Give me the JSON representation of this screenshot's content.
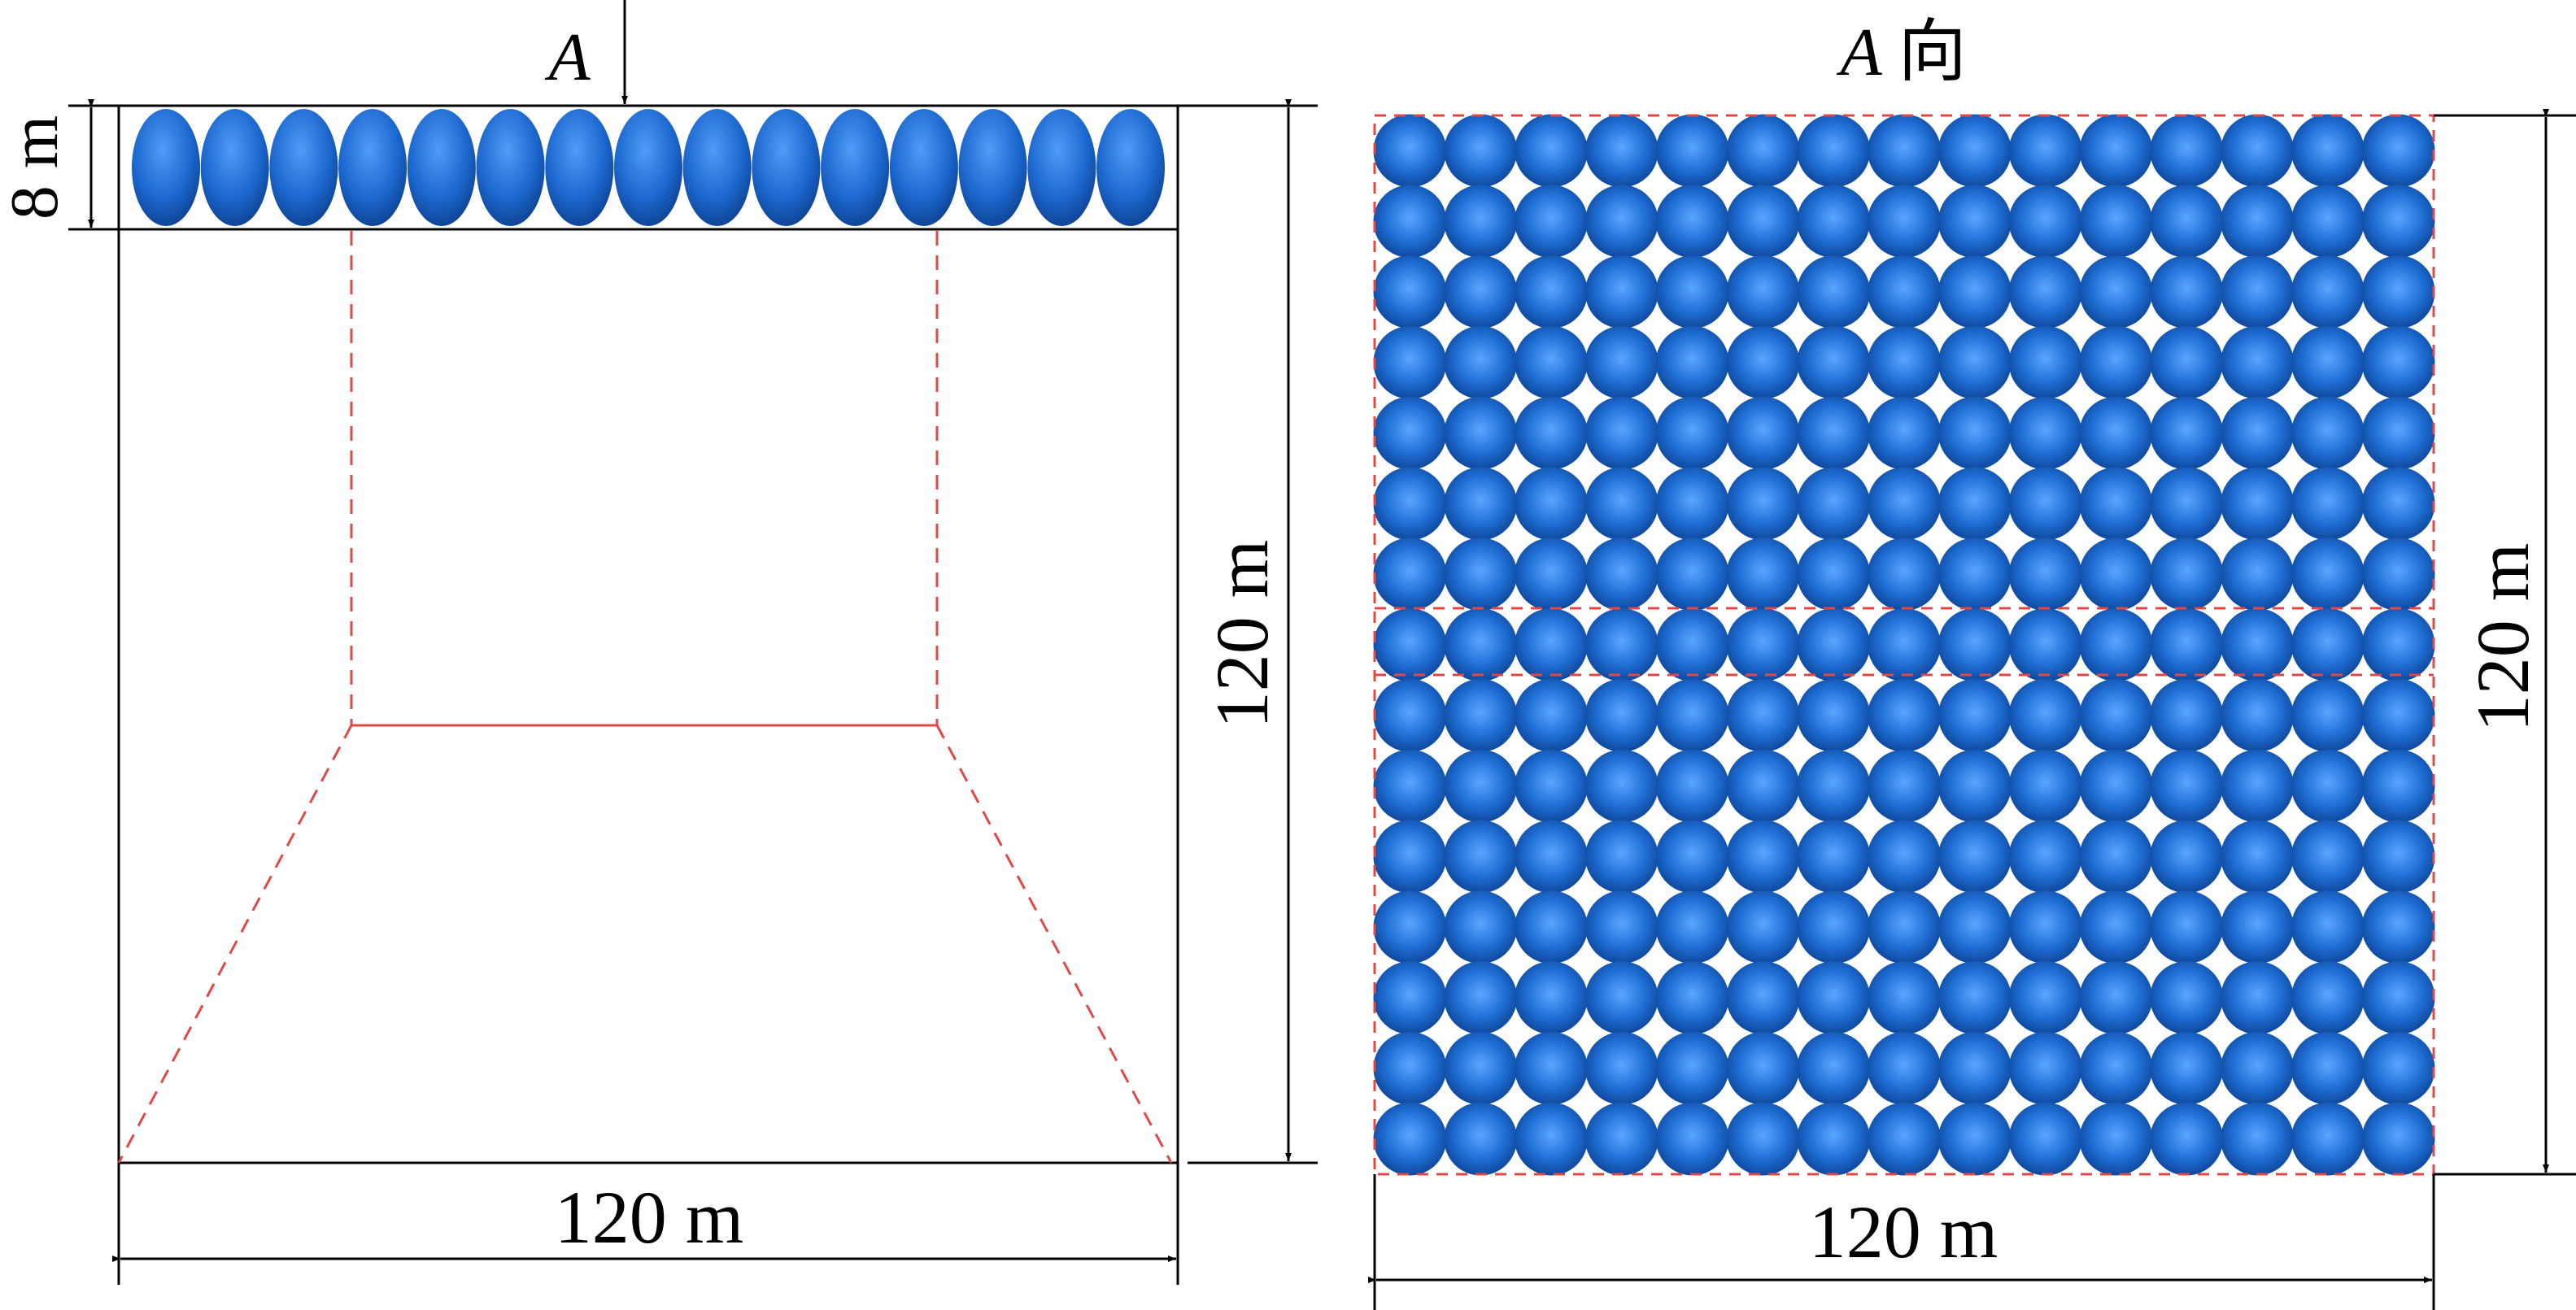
{
  "left_view": {
    "view_arrow_label": "A",
    "height_dimension": "8 m",
    "vertical_dimension": "120 m",
    "horizontal_dimension": "120 m",
    "sphere_count": 15
  },
  "right_view": {
    "view_label_letter": "A",
    "view_label_suffix": "向",
    "vertical_dimension": "120 m",
    "horizontal_dimension": "120 m",
    "grid_rows": 15,
    "grid_cols": 15
  },
  "colors": {
    "sphere": "#1f6fd6",
    "sphere_highlight": "#5aa6ff",
    "sphere_shadow": "#0b3f8f",
    "dashed_line": "#e04848",
    "dimension_line": "#000000"
  }
}
